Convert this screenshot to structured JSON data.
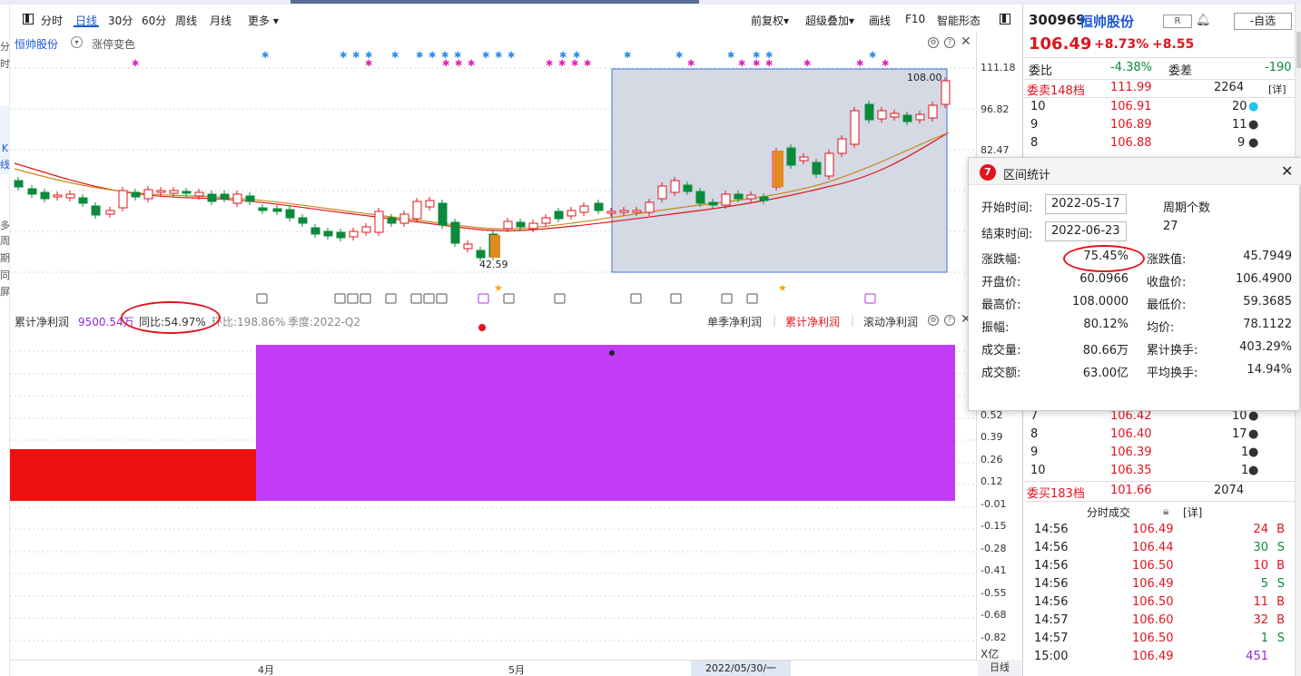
{
  "toolbar": {
    "tabs": [
      "分时",
      "日线",
      "30分",
      "60分",
      "周线",
      "月线"
    ],
    "more": "更多",
    "right": [
      "前复权",
      "超级叠加",
      "画线",
      "F10",
      "智能形态"
    ]
  },
  "left_strip": [
    "分",
    "时",
    "K",
    "线",
    "多",
    "周",
    "期",
    "同",
    "屏"
  ],
  "indicator": {
    "name": "恒帅股份",
    "sub": "涨停变色"
  },
  "price_axis": [
    "111.18",
    "96.82",
    "82.47"
  ],
  "chart_labels": {
    "high": "108.00",
    "low": "42.59"
  },
  "lower_header": {
    "name": "累计净利润",
    "value": "9500.54万",
    "yoy": "同比:54.97%",
    "qoq": "环比:198.86%",
    "season": "季度:2022-Q2",
    "modes": [
      "单季净利润",
      "累计净利润",
      "滚动净利润"
    ]
  },
  "lower_axis": [
    "0.52",
    "0.39",
    "0.26",
    "0.12",
    "-0.01",
    "-0.15",
    "-0.28",
    "-0.41",
    "-0.55",
    "-0.68",
    "-0.82"
  ],
  "lower_unit": "X亿",
  "bottom_axis": {
    "m4": "4月",
    "m5": "5月",
    "cursor": "2022/05/30/一",
    "right": "日线"
  },
  "quote": {
    "code": "300969",
    "name": "恒帅股份",
    "r": "R",
    "watch": "-自选",
    "price": "106.49",
    "pct": "+8.73%",
    "chg": "+8.55",
    "weibi_label": "委比",
    "weibi": "-4.38%",
    "weicha_label": "委差",
    "weicha": "-190",
    "sell_label": "委卖148档",
    "sell_price": "111.99",
    "sell_vol": "2264",
    "detail": "[详]",
    "asks": [
      [
        "10",
        "106.91",
        "20"
      ],
      [
        "9",
        "106.89",
        "11"
      ],
      [
        "8",
        "106.88",
        "9"
      ]
    ],
    "bids": [
      [
        "7",
        "106.42",
        "10"
      ],
      [
        "8",
        "106.40",
        "17"
      ],
      [
        "9",
        "106.39",
        "1"
      ],
      [
        "10",
        "106.35",
        "1"
      ]
    ],
    "buy_label": "委买183档",
    "buy_price": "101.66",
    "buy_vol": "2074",
    "ticks_title": "分时成交",
    "ticks_detail": "[详]",
    "ticks": [
      [
        "14:56",
        "106.49",
        "24",
        "B"
      ],
      [
        "14:56",
        "106.44",
        "30",
        "S"
      ],
      [
        "14:56",
        "106.50",
        "10",
        "B"
      ],
      [
        "14:56",
        "106.49",
        "5",
        "S"
      ],
      [
        "14:56",
        "106.50",
        "11",
        "B"
      ],
      [
        "14:57",
        "106.60",
        "32",
        "B"
      ],
      [
        "14:57",
        "106.50",
        "1",
        "S"
      ],
      [
        "15:00",
        "106.49",
        "451",
        ""
      ]
    ]
  },
  "popup": {
    "title": "区间统计",
    "start_label": "开始时间:",
    "start": "2022-05-17",
    "end_label": "结束时间:",
    "end": "2022-06-23",
    "period_label": "周期个数",
    "period": "27",
    "rows": [
      [
        "涨跌幅:",
        "75.45%",
        "涨跌值:",
        "45.7949"
      ],
      [
        "开盘价:",
        "60.0966",
        "收盘价:",
        "106.4900"
      ],
      [
        "最高价:",
        "108.0000",
        "最低价:",
        "59.3685"
      ],
      [
        "振幅:",
        "80.12%",
        "均价:",
        "78.1122"
      ],
      [
        "成交量:",
        "80.66万",
        "累计换手:",
        "403.29%"
      ],
      [
        "成交额:",
        "63.00亿",
        "平均换手:",
        "14.94%"
      ]
    ]
  },
  "colors": {
    "up": "#e0141e",
    "down": "#0c8a3c",
    "accent": "#1a56db",
    "bar_red": "#ee1111",
    "bar_purple": "#c23cf5"
  }
}
